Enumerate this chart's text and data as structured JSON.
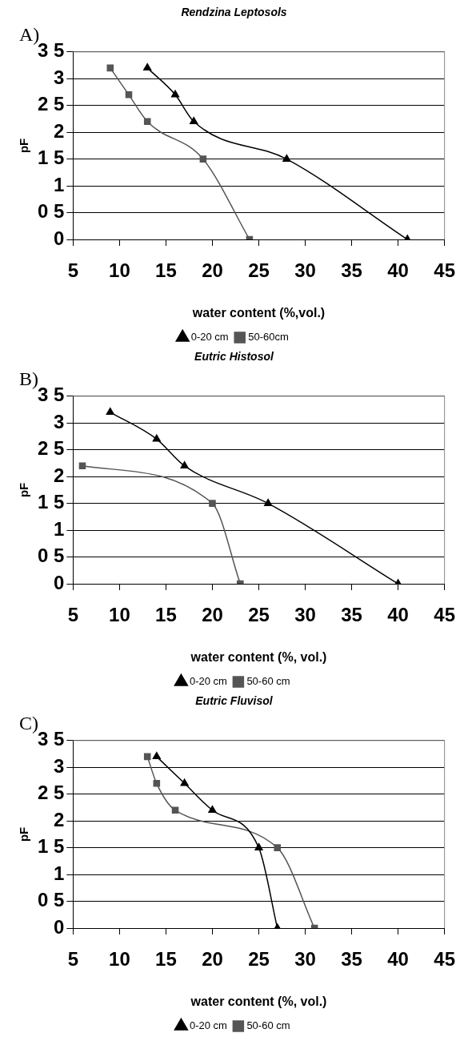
{
  "chart_data": [
    {
      "type": "line",
      "title": "Rendzina Leptosols",
      "xlabel": "water content (%,vol.)",
      "ylabel": "pF",
      "annotations": [
        "A)"
      ],
      "xlim": [
        5,
        45
      ],
      "xticks": [
        5,
        10,
        15,
        20,
        25,
        30,
        35,
        40,
        45
      ],
      "ylim": [
        0,
        3.5
      ],
      "yticks": [
        0,
        {
          "value": 0.5,
          "label": "0 5"
        },
        1,
        {
          "value": 1.5,
          "label": "1 5"
        },
        2,
        {
          "value": 2.5,
          "label": "2 5"
        },
        3,
        {
          "value": 3.5,
          "label": "3 5"
        }
      ],
      "grid": "y",
      "legend": "bottom",
      "series": [
        {
          "name": "0-20 cm",
          "color": "#000000",
          "marker": "triangle",
          "x": [
            13,
            16,
            18,
            28,
            41
          ],
          "values": [
            3.2,
            2.7,
            2.2,
            1.5,
            0
          ]
        },
        {
          "name": "50-60cm",
          "color": "#555555",
          "marker": "square",
          "x": [
            9,
            11,
            13,
            19,
            24
          ],
          "values": [
            3.2,
            2.7,
            2.2,
            1.5,
            0
          ]
        }
      ]
    },
    {
      "type": "line",
      "title": "Eutric Histosol",
      "xlabel": "water content (%, vol.)",
      "ylabel": "pF",
      "annotations": [
        "B)"
      ],
      "xlim": [
        5,
        45
      ],
      "xticks": [
        5,
        10,
        15,
        20,
        25,
        30,
        35,
        40,
        45
      ],
      "ylim": [
        0,
        3.5
      ],
      "yticks": [
        0,
        {
          "value": 0.5,
          "label": "0 5"
        },
        1,
        {
          "value": 1.5,
          "label": "1 5"
        },
        2,
        {
          "value": 2.5,
          "label": "2 5"
        },
        3,
        {
          "value": 3.5,
          "label": "3 5"
        }
      ],
      "grid": "y",
      "legend": "bottom",
      "series": [
        {
          "name": "0-20 cm",
          "color": "#000000",
          "marker": "triangle",
          "x": [
            9,
            14,
            17,
            26,
            40
          ],
          "values": [
            3.2,
            2.7,
            2.2,
            1.5,
            0
          ]
        },
        {
          "name": "50-60 cm",
          "color": "#555555",
          "marker": "square",
          "x": [
            6,
            20,
            23
          ],
          "values": [
            2.2,
            1.5,
            0
          ]
        }
      ]
    },
    {
      "type": "line",
      "title": "Eutric Fluvisol",
      "xlabel": "water content (%, vol.)",
      "ylabel": "pF",
      "annotations": [
        "C)"
      ],
      "xlim": [
        5,
        45
      ],
      "xticks": [
        5,
        10,
        15,
        20,
        25,
        30,
        35,
        40,
        45
      ],
      "ylim": [
        0,
        3.5
      ],
      "yticks": [
        0,
        {
          "value": 0.5,
          "label": "0 5"
        },
        1,
        {
          "value": 1.5,
          "label": "1 5"
        },
        2,
        {
          "value": 2.5,
          "label": "2 5"
        },
        3,
        {
          "value": 3.5,
          "label": "3 5"
        }
      ],
      "grid": "y",
      "legend": "bottom",
      "series": [
        {
          "name": "0-20 cm",
          "color": "#000000",
          "marker": "triangle",
          "x": [
            14,
            17,
            20,
            25,
            27
          ],
          "values": [
            3.2,
            2.7,
            2.2,
            1.5,
            0
          ]
        },
        {
          "name": "50-60 cm",
          "color": "#555555",
          "marker": "square",
          "x": [
            13,
            14,
            16,
            27,
            31
          ],
          "values": [
            3.2,
            2.7,
            2.2,
            1.5,
            0
          ]
        }
      ]
    }
  ]
}
